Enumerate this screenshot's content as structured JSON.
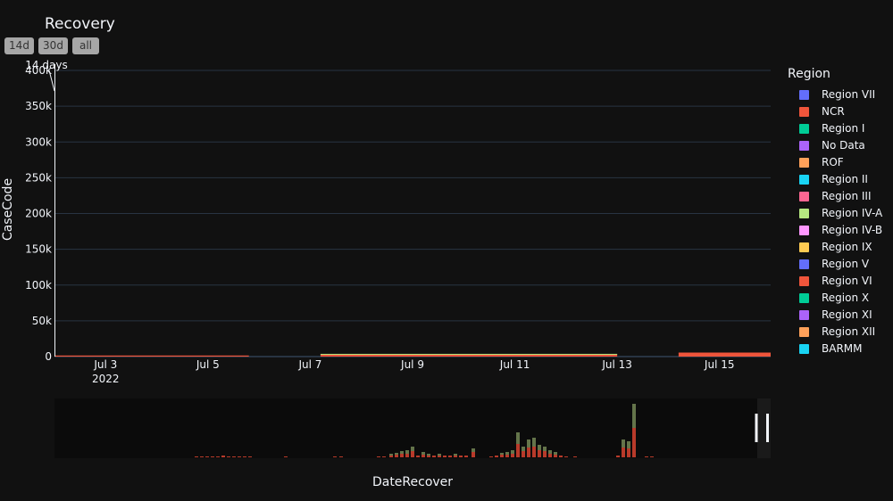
{
  "chart_data": {
    "type": "bar",
    "title": "Recovery",
    "xlabel": "DateRecover",
    "ylabel": "CaseCode",
    "ylim": [
      0,
      400000
    ],
    "y_ticks": [
      {
        "value": 0,
        "label": "0"
      },
      {
        "value": 50000,
        "label": "50k"
      },
      {
        "value": 100000,
        "label": "100k"
      },
      {
        "value": 150000,
        "label": "150k"
      },
      {
        "value": 200000,
        "label": "200k"
      },
      {
        "value": 250000,
        "label": "250k"
      },
      {
        "value": 300000,
        "label": "300k"
      },
      {
        "value": 350000,
        "label": "350k"
      },
      {
        "value": 400000,
        "label": "400k"
      }
    ],
    "x_range": [
      "2022-07-02",
      "2022-07-16"
    ],
    "x_ticks": [
      {
        "date": "2022-07-03",
        "label": "Jul 3",
        "sublabel": "2022"
      },
      {
        "date": "2022-07-05",
        "label": "Jul 5",
        "sublabel": ""
      },
      {
        "date": "2022-07-07",
        "label": "Jul 7",
        "sublabel": ""
      },
      {
        "date": "2022-07-09",
        "label": "Jul 9",
        "sublabel": ""
      },
      {
        "date": "2022-07-11",
        "label": "Jul 11",
        "sublabel": ""
      },
      {
        "date": "2022-07-13",
        "label": "Jul 13",
        "sublabel": ""
      },
      {
        "date": "2022-07-15",
        "label": "Jul 15",
        "sublabel": ""
      }
    ],
    "bars": [
      {
        "start": "2022-07-02",
        "end": "2022-07-05.8",
        "series": "NCR",
        "value": 1500
      },
      {
        "start": "2022-07-07.2",
        "end": "2022-07-13",
        "series": "NCR",
        "value": 3000
      },
      {
        "start": "2022-07-07.2",
        "end": "2022-07-13",
        "series": "Region IV-A",
        "value": 800
      },
      {
        "start": "2022-07-14.2",
        "end": "2022-07-16",
        "series": "NCR",
        "value": 5000
      },
      {
        "start": "2022-07-14.2",
        "end": "2022-07-16",
        "series": "Region VI",
        "value": 600
      }
    ],
    "annotation": {
      "text": "14 days"
    },
    "grid": true,
    "legend_position": "right"
  },
  "legend": {
    "title": "Region",
    "items": [
      {
        "name": "Region VII",
        "color": "#636efa"
      },
      {
        "name": "NCR",
        "color": "#EF553B"
      },
      {
        "name": "Region I",
        "color": "#00cc96"
      },
      {
        "name": "No Data",
        "color": "#ab63fa"
      },
      {
        "name": "ROF",
        "color": "#FFA15A"
      },
      {
        "name": "Region II",
        "color": "#19d3f3"
      },
      {
        "name": "Region III",
        "color": "#FF6692"
      },
      {
        "name": "Region IV-A",
        "color": "#B6E880"
      },
      {
        "name": "Region IV-B",
        "color": "#FF97FF"
      },
      {
        "name": "Region IX",
        "color": "#FECB52"
      },
      {
        "name": "Region V",
        "color": "#636efa"
      },
      {
        "name": "Region VI",
        "color": "#EF553B"
      },
      {
        "name": "Region X",
        "color": "#00cc96"
      },
      {
        "name": "Region XI",
        "color": "#ab63fa"
      },
      {
        "name": "Region XII",
        "color": "#FFA15A"
      },
      {
        "name": "BARMM",
        "color": "#19d3f3"
      }
    ]
  },
  "range_selector": {
    "buttons": [
      {
        "label": "14d"
      },
      {
        "label": "30d"
      },
      {
        "label": "all"
      }
    ]
  },
  "range_slider": {
    "window_fraction": [
      0.0,
      0.98
    ]
  },
  "colors": {
    "background": "#111111",
    "grid": "#283442",
    "text": "#f2f5fa",
    "button_bg": "#a6a6a6"
  }
}
